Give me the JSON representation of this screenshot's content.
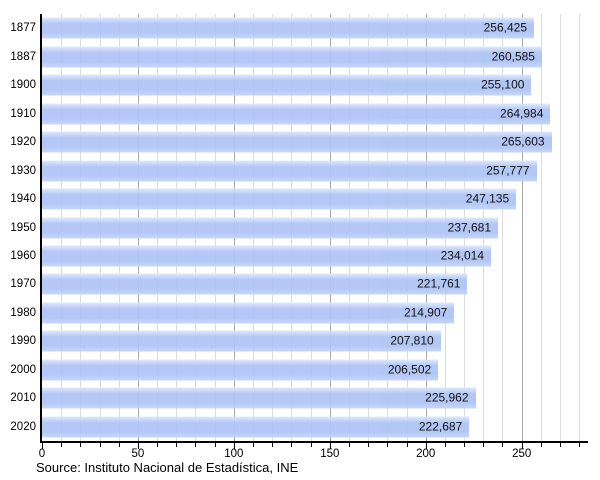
{
  "source_note": "Source: Instituto Nacional de Estadística, INE",
  "chart_data": {
    "type": "bar",
    "orientation": "horizontal",
    "title": "",
    "xlabel": "",
    "ylabel": "",
    "legend": "none",
    "grid": "vertical, minor every 10,000 and major every 50,000",
    "categories": [
      "1877",
      "1887",
      "1900",
      "1910",
      "1920",
      "1930",
      "1940",
      "1950",
      "1960",
      "1970",
      "1980",
      "1990",
      "2000",
      "2010",
      "2020"
    ],
    "values": [
      256425,
      260585,
      255100,
      264984,
      265603,
      257777,
      247135,
      237681,
      234014,
      221761,
      214907,
      207810,
      206502,
      225962,
      222687
    ],
    "value_labels": [
      "256,425",
      "260,585",
      "255,100",
      "264,984",
      "265,603",
      "257,777",
      "247,135",
      "237,681",
      "234,014",
      "221,761",
      "214,907",
      "207,810",
      "206,502",
      "225,962",
      "222,687"
    ],
    "axis": {
      "max": 283000,
      "grid_max": 280000,
      "minor_step": 10000,
      "major_step": 50000,
      "tick_values": [
        0,
        50000,
        100000,
        150000,
        200000,
        250000
      ],
      "tick_labels": [
        "0",
        "50",
        "100",
        "150",
        "200",
        "250"
      ],
      "unit_divisor": 1000
    },
    "colors": {
      "bar_main": "#aec3f5",
      "bar_light": "#dde8fd",
      "bar_mid": "#c4d4fa",
      "grid_minor": "#dcdcdc",
      "grid_major": "#a8a8a8",
      "axis": "#000000",
      "text": "#000000"
    }
  }
}
